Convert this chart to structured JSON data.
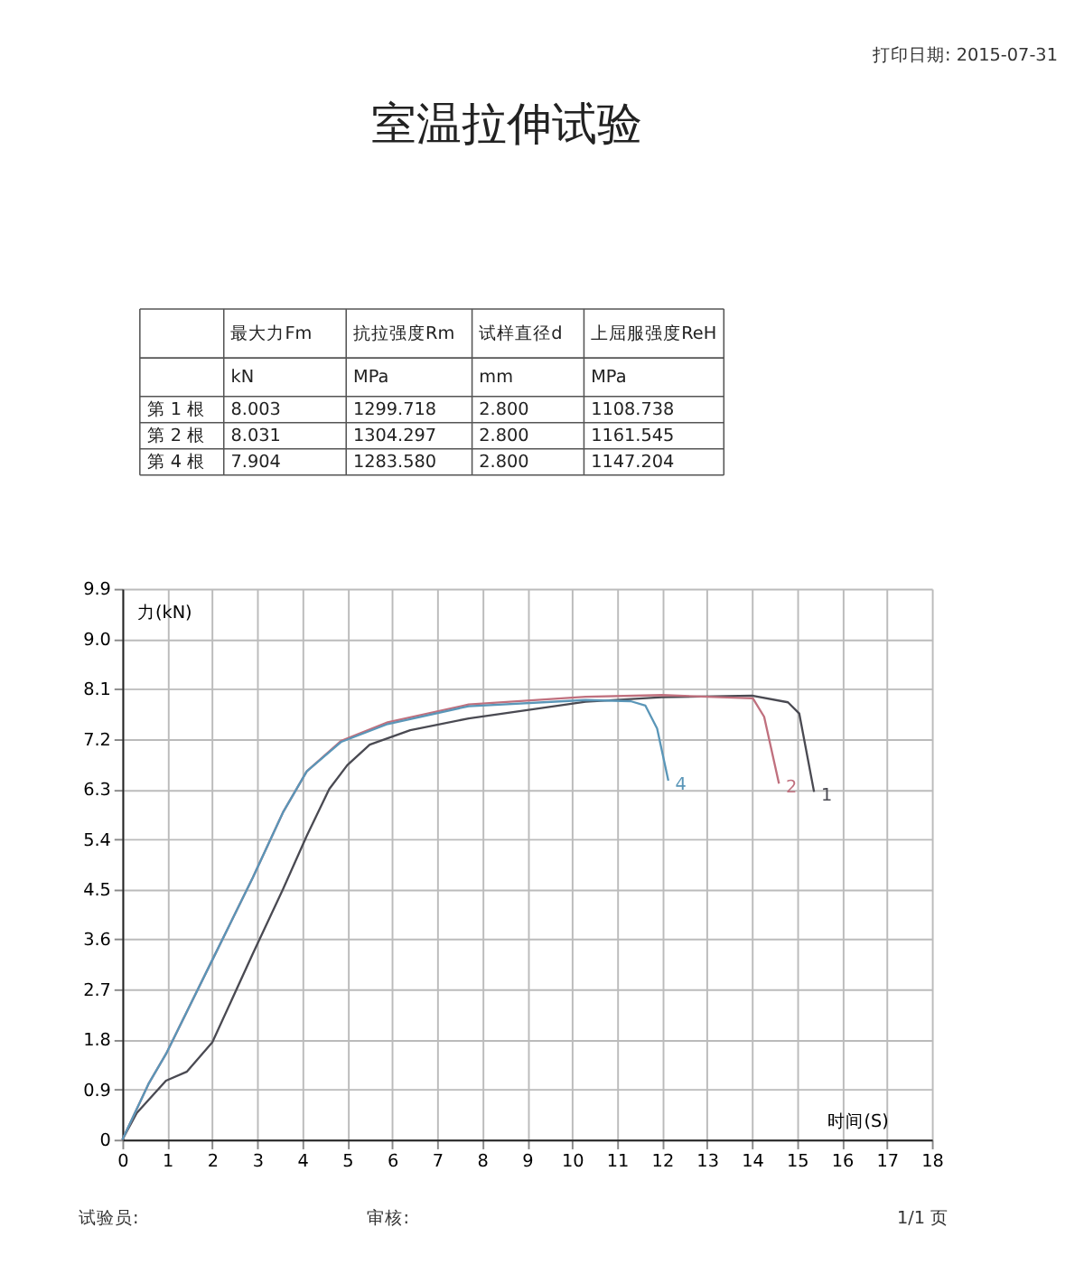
{
  "chart_data": [
    {
      "type": "other",
      "title": "室温拉伸试验",
      "annotations": [
        "打印日期: 2015-07-31",
        "最大力Fm",
        "抗拉强度Rm",
        "试样直径d",
        "上屈服强度ReH",
        "kN",
        "MPa",
        "mm",
        "MPa",
        "第 1 根",
        "8.003",
        "1299.718",
        "2.800",
        "1108.738",
        "第 2 根",
        "8.031",
        "1304.297",
        "2.800",
        "1161.545",
        "第 4 根",
        "7.904",
        "1283.580",
        "2.800",
        "1147.204"
      ]
    },
    {
      "type": "line",
      "xlabel": "时间(S)",
      "ylabel": "力(kN)",
      "xlim": [
        0,
        18
      ],
      "ylim": [
        0,
        9.9
      ],
      "xticks": [
        0,
        1,
        2,
        3,
        4,
        5,
        6,
        7,
        8,
        9,
        10,
        11,
        12,
        13,
        14,
        15,
        16,
        17,
        18
      ],
      "yticks": [
        0,
        0.9,
        1.8,
        2.7,
        3.6,
        4.5,
        5.4,
        6.3,
        7.2,
        8.1,
        {
          "value": 9,
          "label": "9.0"
        },
        9.9
      ],
      "grid": true,
      "legend": false,
      "line_style": "solid",
      "marker": "none",
      "series": [
        {
          "name": "1",
          "color": "#4a4a52",
          "x": [
            0,
            0.32,
            0.97,
            1.43,
            2.0,
            2.9,
            3.57,
            4.1,
            4.6,
            5.0,
            5.5,
            6.4,
            7.7,
            10.3,
            12.0,
            14.0,
            14.8,
            15.05,
            15.38
          ],
          "values": [
            0,
            0.48,
            1.06,
            1.22,
            1.75,
            3.34,
            4.5,
            5.46,
            6.3,
            6.73,
            7.1,
            7.36,
            7.57,
            7.87,
            7.95,
            7.98,
            7.86,
            7.66,
            6.25
          ]
        },
        {
          "name": "2",
          "color": "#c0707e",
          "x": [
            0,
            0.58,
            0.97,
            2.0,
            2.9,
            3.57,
            4.1,
            4.87,
            5.9,
            7.7,
            10.3,
            12.0,
            14.02,
            14.27,
            14.6
          ],
          "values": [
            0,
            1.0,
            1.54,
            3.23,
            4.71,
            5.88,
            6.62,
            7.17,
            7.5,
            7.82,
            7.96,
            7.99,
            7.93,
            7.6,
            6.4
          ]
        },
        {
          "name": "4",
          "color": "#5a96b8",
          "x": [
            0,
            0.58,
            0.97,
            2.0,
            2.9,
            3.57,
            4.1,
            4.87,
            5.9,
            7.7,
            10.3,
            11.3,
            11.63,
            11.89,
            12.14
          ],
          "values": [
            0,
            1.0,
            1.54,
            3.23,
            4.71,
            5.88,
            6.62,
            7.15,
            7.47,
            7.79,
            7.9,
            7.88,
            7.8,
            7.39,
            6.45
          ]
        }
      ],
      "annotations": [
        "试验员:",
        "审核:",
        "1/1 页"
      ]
    }
  ]
}
